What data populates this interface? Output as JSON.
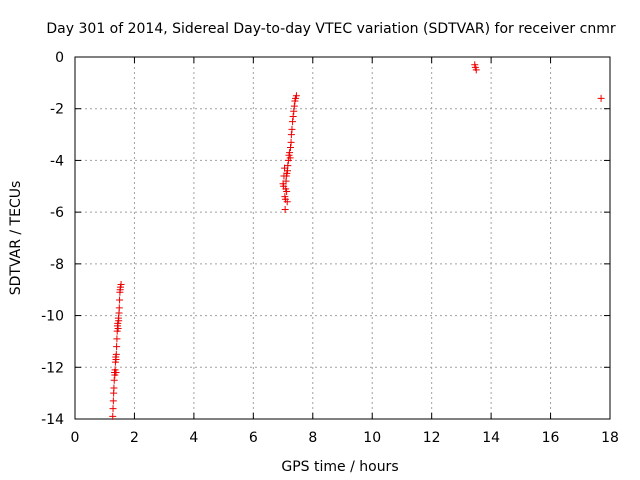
{
  "chart_data": {
    "type": "scatter",
    "title": "Day 301 of 2014, Sidereal Day-to-day VTEC variation (SDTVAR) for receiver cnmr",
    "xlabel": "GPS time / hours",
    "ylabel": "SDTVAR / TECUs",
    "xlim": [
      0,
      18
    ],
    "ylim": [
      -14,
      0
    ],
    "xticks": [
      0,
      2,
      4,
      6,
      8,
      10,
      12,
      14,
      16,
      18
    ],
    "yticks": [
      0,
      -2,
      -4,
      -6,
      -8,
      -10,
      -12,
      -14
    ],
    "xtick_labels": [
      "0",
      "2",
      "4",
      "6",
      "8",
      "10",
      "12",
      "14",
      "16",
      "18"
    ],
    "ytick_labels": [
      "0",
      "-2",
      "-4",
      "-6",
      "-8",
      "-10",
      "-12",
      "-14"
    ],
    "grid": true,
    "marker": "plus",
    "colors": {
      "series": "#ee0000",
      "grid": "#a0a0a0",
      "axis": "#000000"
    },
    "series": [
      {
        "name": "SDTVAR",
        "x": [
          1.27,
          1.28,
          1.29,
          1.3,
          1.31,
          1.32,
          1.33,
          1.34,
          1.35,
          1.36,
          1.37,
          1.38,
          1.38,
          1.39,
          1.4,
          1.41,
          1.42,
          1.43,
          1.44,
          1.45,
          1.46,
          1.47,
          1.48,
          1.49,
          1.5,
          1.51,
          1.52,
          1.53,
          1.55,
          7.0,
          7.02,
          7.03,
          7.05,
          7.06,
          7.07,
          7.08,
          7.09,
          7.1,
          7.11,
          7.12,
          7.13,
          7.14,
          7.15,
          7.16,
          7.18,
          7.2,
          7.22,
          7.24,
          7.25,
          7.27,
          7.28,
          7.3,
          7.32,
          7.34,
          7.36,
          7.38,
          7.4,
          7.42,
          7.45,
          13.45,
          13.47,
          13.5,
          17.7
        ],
        "y": [
          -13.9,
          -13.6,
          -13.3,
          -13.0,
          -12.8,
          -12.5,
          -12.2,
          -12.3,
          -12.1,
          -11.8,
          -11.6,
          -11.7,
          -12.2,
          -11.5,
          -11.2,
          -10.9,
          -10.6,
          -10.4,
          -10.3,
          -10.5,
          -10.1,
          -10.2,
          -9.9,
          -9.7,
          -9.4,
          -9.1,
          -9.0,
          -8.9,
          -8.8,
          -4.9,
          -5.0,
          -4.6,
          -4.3,
          -5.4,
          -5.9,
          -5.5,
          -5.1,
          -4.8,
          -4.6,
          -5.2,
          -4.5,
          -5.6,
          -4.4,
          -4.2,
          -4.0,
          -3.8,
          -3.7,
          -3.9,
          -3.5,
          -3.3,
          -3.0,
          -2.8,
          -2.5,
          -2.3,
          -2.1,
          -1.9,
          -1.7,
          -1.6,
          -1.5,
          -0.3,
          -0.4,
          -0.5,
          -1.6
        ]
      }
    ]
  }
}
